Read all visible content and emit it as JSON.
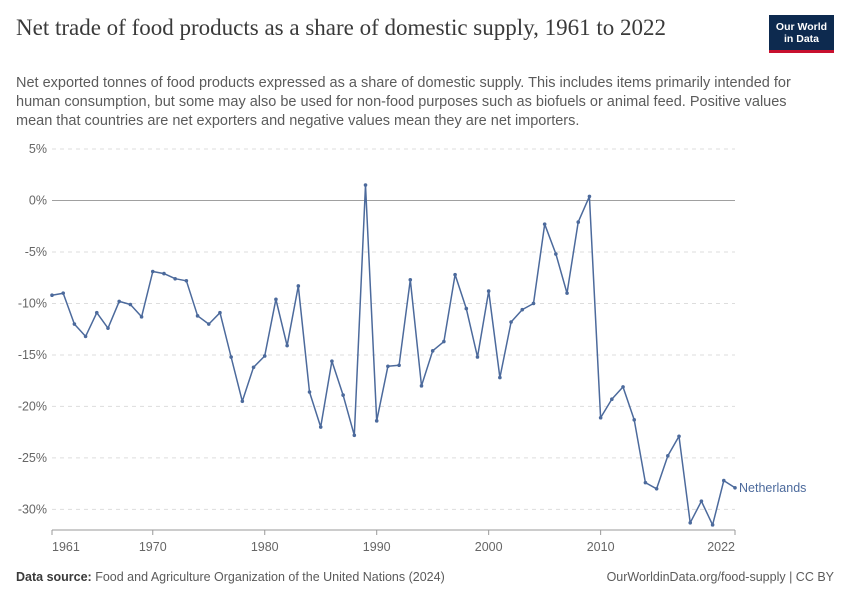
{
  "header": {
    "title": "Net trade of food products as a share of domestic supply, 1961 to 2022",
    "subtitle": "Net exported tonnes of food products expressed as a share of domestic supply. This includes items primarily intended for human consumption, but some may also be used for non-food purposes such as biofuels or animal feed. Positive values mean that countries are net exporters and negative values mean they are net importers.",
    "logo_line1": "Our World",
    "logo_line2": "in Data"
  },
  "footer": {
    "source_label": "Data source:",
    "source_text": "Food and Agriculture Organization of the United Nations (2024)",
    "url_text": "OurWorldinData.org/food-supply | CC BY"
  },
  "colors": {
    "series": "#4c6a9c",
    "grid": "#dddddd",
    "zero_line": "#a0a0a0",
    "logo_bg": "#0d2a4f",
    "logo_accent": "#c8102e"
  },
  "chart_data": {
    "type": "line",
    "ylim": [
      -32,
      5
    ],
    "xlim": [
      1961,
      2022
    ],
    "y_ticks": [
      5,
      0,
      -5,
      -10,
      -15,
      -20,
      -25,
      -30
    ],
    "y_tick_labels": [
      "5%",
      "0%",
      "-5%",
      "-10%",
      "-15%",
      "-20%",
      "-25%",
      "-30%"
    ],
    "x_ticks": [
      1961,
      1970,
      1980,
      1990,
      2000,
      2010,
      2022
    ],
    "x_tick_labels": [
      "1961",
      "1970",
      "1980",
      "1990",
      "2000",
      "2010",
      "2022"
    ],
    "grid": true,
    "series": [
      {
        "name": "Netherlands",
        "x": [
          1961,
          1962,
          1963,
          1964,
          1965,
          1966,
          1967,
          1968,
          1969,
          1970,
          1971,
          1972,
          1973,
          1974,
          1975,
          1976,
          1977,
          1978,
          1979,
          1980,
          1981,
          1982,
          1983,
          1984,
          1985,
          1986,
          1987,
          1988,
          1989,
          1990,
          1991,
          1992,
          1993,
          1994,
          1995,
          1996,
          1997,
          1998,
          1999,
          2000,
          2001,
          2002,
          2003,
          2004,
          2005,
          2006,
          2007,
          2008,
          2009,
          2010,
          2011,
          2012,
          2013,
          2014,
          2015,
          2016,
          2017,
          2018,
          2019,
          2020,
          2021,
          2022
        ],
        "values": [
          -9.2,
          -9.0,
          -12.0,
          -13.2,
          -10.9,
          -12.4,
          -9.8,
          -10.1,
          -11.3,
          -6.9,
          -7.1,
          -7.6,
          -7.8,
          -11.2,
          -12.0,
          -10.9,
          -15.2,
          -19.5,
          -16.2,
          -15.1,
          -9.6,
          -14.1,
          -8.3,
          -18.6,
          -22.0,
          -15.6,
          -18.9,
          -22.8,
          1.5,
          -21.4,
          -16.1,
          -16.0,
          -7.7,
          -18.0,
          -14.6,
          -13.7,
          -7.2,
          -10.5,
          -15.2,
          -8.8,
          -17.2,
          -11.8,
          -10.6,
          -10.0,
          -2.3,
          -5.2,
          -9.0,
          -2.1,
          0.4,
          -21.1,
          -19.3,
          -18.1,
          -21.3,
          -27.4,
          -28.0,
          -24.8,
          -22.9,
          -31.3,
          -29.2,
          -31.5,
          -27.2,
          -27.9
        ]
      }
    ]
  }
}
